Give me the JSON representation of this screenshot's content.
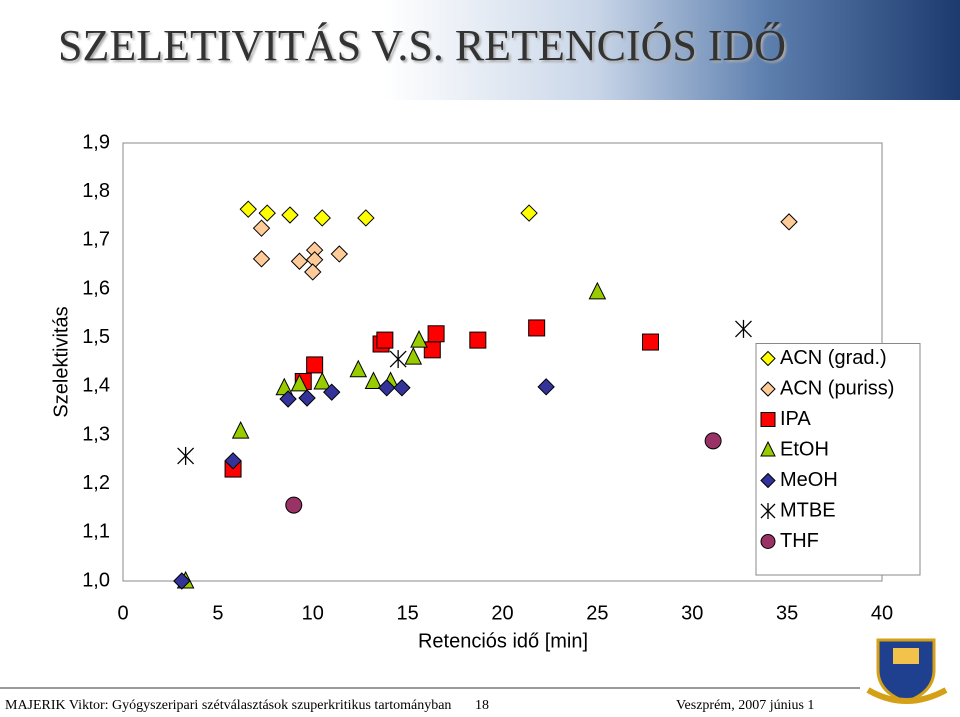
{
  "title": "SZELETIVITÁS V.S. RETENCIÓS IDŐ",
  "chart_data": {
    "type": "scatter",
    "x_label": "Retenciós idő [min]",
    "y_label": "Szelektivitás",
    "xlim": [
      0,
      40
    ],
    "xticks": [
      0,
      5,
      10,
      15,
      20,
      25,
      30,
      35,
      40
    ],
    "ylim": [
      1.0,
      1.9
    ],
    "yticks": [
      {
        "value": 1.0,
        "label": "1,0"
      },
      {
        "value": 1.1,
        "label": "1,1"
      },
      {
        "value": 1.2,
        "label": "1,2"
      },
      {
        "value": 1.3,
        "label": "1,3"
      },
      {
        "value": 1.4,
        "label": "1,4"
      },
      {
        "value": 1.5,
        "label": "1,5"
      },
      {
        "value": 1.6,
        "label": "1,6"
      },
      {
        "value": 1.7,
        "label": "1,7"
      },
      {
        "value": 1.8,
        "label": "1,8"
      },
      {
        "value": 1.9,
        "label": "1,9"
      }
    ],
    "grid": false,
    "legend": "lower right",
    "series": [
      {
        "name": "ACN (grad.)",
        "color": "#ffff00",
        "marker": "diamond",
        "x": [
          6.6,
          7.6,
          8.8,
          10.5,
          12.8,
          21.4
        ],
        "values": [
          1.764,
          1.756,
          1.752,
          1.746,
          1.746,
          1.756
        ]
      },
      {
        "name": "ACN (puriss)",
        "color": "#ffcc99",
        "marker": "diamond",
        "x": [
          7.3,
          7.3,
          9.3,
          10.1,
          10.1,
          10.0,
          11.4,
          35.1
        ],
        "values": [
          1.725,
          1.662,
          1.657,
          1.68,
          1.66,
          1.635,
          1.672,
          1.738
        ]
      },
      {
        "name": "IPA",
        "color": "#ff0000",
        "marker": "square",
        "x": [
          5.8,
          9.5,
          10.1,
          13.6,
          13.8,
          16.3,
          16.5,
          18.7,
          21.8,
          27.8
        ],
        "values": [
          1.23,
          1.41,
          1.444,
          1.487,
          1.495,
          1.475,
          1.508,
          1.495,
          1.52,
          1.491
        ]
      },
      {
        "name": "EtOH",
        "color": "#99cc00",
        "marker": "triangle",
        "x": [
          3.3,
          6.2,
          8.5,
          9.3,
          10.5,
          12.4,
          13.2,
          14.1,
          15.3,
          15.6,
          25.0
        ],
        "values": [
          1.0,
          1.308,
          1.397,
          1.405,
          1.409,
          1.434,
          1.41,
          1.41,
          1.46,
          1.495,
          1.594
        ]
      },
      {
        "name": "MeOH",
        "color": "#333399",
        "marker": "diamond",
        "x": [
          3.1,
          5.8,
          8.7,
          9.7,
          11.0,
          13.9,
          14.7,
          22.3
        ],
        "values": [
          1.0,
          1.247,
          1.374,
          1.376,
          1.388,
          1.397,
          1.397,
          1.399
        ]
      },
      {
        "name": "MTBE",
        "color": "#000000",
        "marker": "star",
        "x": [
          3.3,
          14.5,
          32.7
        ],
        "values": [
          1.257,
          1.456,
          1.518
        ]
      },
      {
        "name": "THF",
        "color": "#993366",
        "marker": "circle",
        "x": [
          9.0,
          31.1
        ],
        "values": [
          1.156,
          1.288
        ]
      }
    ]
  },
  "footer": {
    "author": "MAJERIK Viktor: Gyógyszeripari szétválasztások szuperkritikus tartományban",
    "page": 18,
    "place_date": "Veszprém, 2007 június 1"
  }
}
